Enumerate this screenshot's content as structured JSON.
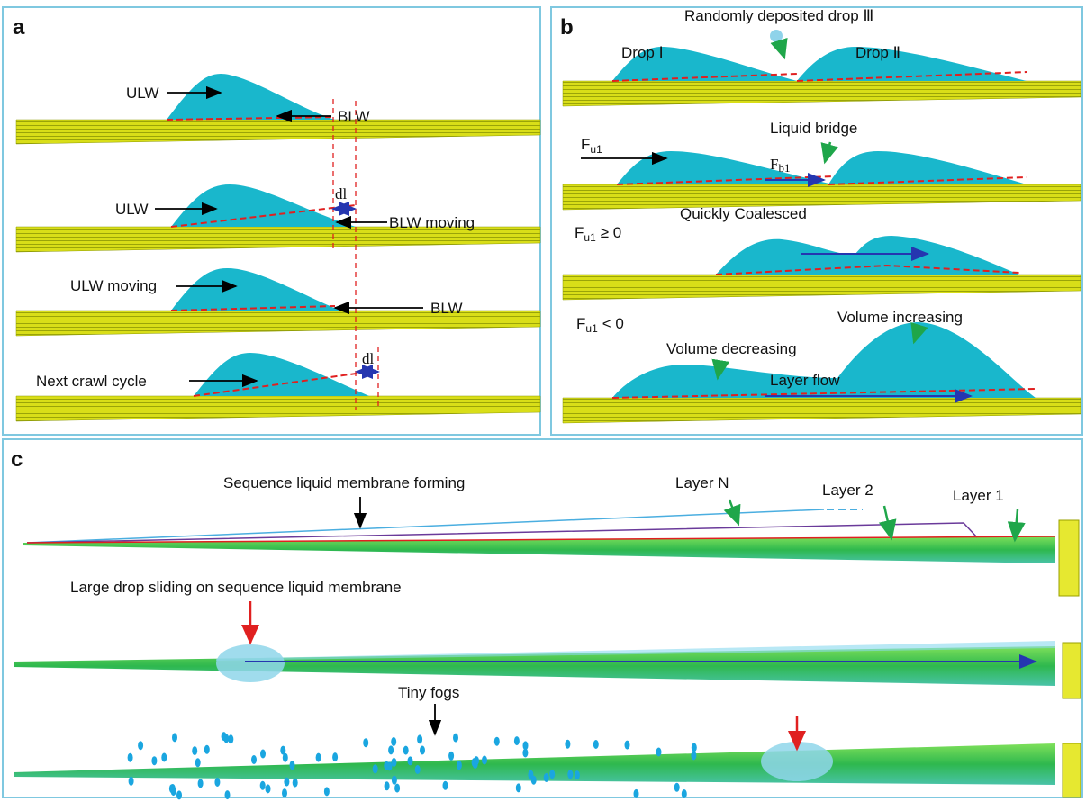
{
  "panel_a": {
    "label": "a",
    "labels": [
      "ULW",
      "BLW",
      "ULW",
      "dl",
      "BLW moving",
      "ULW moving",
      "BLW",
      "Next crawl cycle",
      "dl"
    ]
  },
  "panel_b": {
    "label": "b",
    "title": "Randomly deposited drop Ⅲ",
    "drop_1": "Drop Ⅰ",
    "drop_2": "Drop Ⅱ",
    "force_u1": {
      "symbol": "F",
      "subscript": "u1"
    },
    "liquid_bridge": "Liquid bridge",
    "force_b1": {
      "symbol": "F",
      "subscript": "b1"
    },
    "condition_1": {
      "symbol": "F",
      "subscript": "u1",
      "relation": "≥ 0"
    },
    "coalesced": "Quickly Coalesced",
    "condition_2": {
      "symbol": "F",
      "subscript": "u1",
      "relation": "< 0"
    },
    "volume_increasing": "Volume increasing",
    "volume_decreasing": "Volume decreasing",
    "layer_flow": "Layer flow"
  },
  "panel_c": {
    "label": "c",
    "membrane": "Sequence liquid membrane forming",
    "layer_n": "Layer N",
    "layer_2": "Layer 2",
    "layer_1": "Layer 1",
    "large_drop": "Large drop sliding on sequence liquid membrane",
    "fogs": "Tiny fogs"
  }
}
